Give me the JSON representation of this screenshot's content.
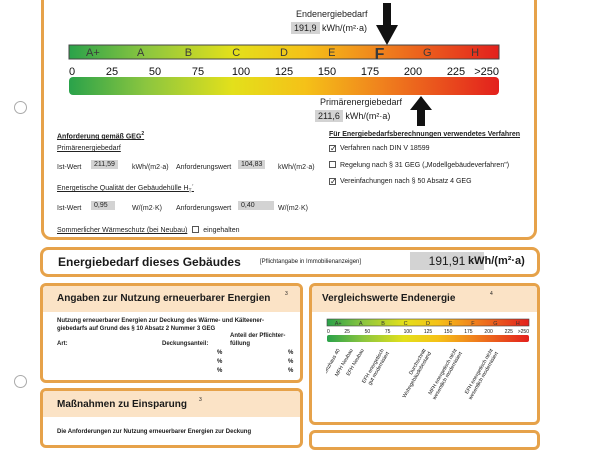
{
  "final_demand": {
    "label": "Endenergiebedarf",
    "value": "191,9",
    "unit": "kWh/(m²·a)"
  },
  "primary_demand": {
    "label": "Primärenergiebedarf",
    "value": "211,6",
    "unit": "kWh/(m²·a)"
  },
  "scale": {
    "classes": [
      "A+",
      "A",
      "B",
      "C",
      "D",
      "E",
      "F",
      "G",
      "H"
    ],
    "ticks": [
      "0",
      "25",
      "50",
      "75",
      "100",
      "125",
      "150",
      "175",
      "200",
      "225",
      ">250"
    ]
  },
  "requirements": {
    "title": "Anforderung gemäß GEG",
    "title_sup": "2",
    "primary_label": "Primärenergiebedarf",
    "actual_label": "Ist-Wert",
    "actual_value": "211,59",
    "unit1": "kWh/(m2·a)",
    "req_label": "Anforderungswert",
    "req_value": "104,83",
    "unit2": "kWh/(m2·a)",
    "envelope_label": "Energetische Qualität der Gebäudehülle H",
    "envelope_sub": "T",
    "envelope_suffix": "´",
    "env_actual_label": "Ist-Wert",
    "env_actual_value": "0,95",
    "env_unit1": "W/(m2·K)",
    "env_req_label": "Anforderungswert",
    "env_req_value": "0,40",
    "env_unit2": "W/(m2·K)",
    "summer_label": "Sommerlicher Wärmeschutz (bei Neubau)",
    "summer_option": "eingehalten"
  },
  "methods": {
    "title": "Für Energiebedarfsberechnungen verwendetes Verfahren",
    "items": [
      {
        "label": "Verfahren nach DIN V 18599",
        "checked": true
      },
      {
        "label": "Regelung nach § 31 GEG („Modellgebäudeverfahren\")",
        "checked": false
      },
      {
        "label": "Vereinfachungen nach § 50 Absatz 4 GEG",
        "checked": true
      }
    ]
  },
  "building_demand": {
    "title": "Energiebedarf dieses Gebäudes",
    "note": "[Pflichtangabe in Immobilienanzeigen]",
    "value": "191,91",
    "unit": "kWh/(m²·a)"
  },
  "renewables": {
    "title": "Angaben zur Nutzung erneuerbarer Energien",
    "title_sup": "3",
    "intro": "Nutzung erneuerbarer Energien zur Deckung des Wärme- und Kälteener-giebedarfs auf Grund des § 10 Absatz 2 Nummer 3 GEG",
    "col_art": "Art:",
    "col_share": "Deckungsanteil:",
    "col_req": "Anteil der Pflichter-füllung",
    "pct": "%"
  },
  "measures": {
    "title": "Maßnahmen zu Einsparung",
    "title_sup": "3",
    "text": "Die Anforderungen zur Nutzung erneuerbarer Energien zur Deckung"
  },
  "comparison": {
    "title": "Vergleichswerte Endenergie",
    "title_sup": "4",
    "classes": [
      "A+",
      "A",
      "B",
      "C",
      "D",
      "E",
      "F",
      "G",
      "H"
    ],
    "ticks": [
      "0",
      "25",
      "50",
      "75",
      "100",
      "125",
      "150",
      "175",
      "200",
      "225",
      ">250"
    ],
    "labels": [
      "Effizienzhaus 40",
      "MFH Neubau",
      "EFH Neubau",
      "EFH energetisch gut modernisiert",
      "Durchschnitt Wohngebäudebestand",
      "MFH energetisch nicht wesentlich modernisiert",
      "EFH energetisch nicht wesentlich modernisiert"
    ]
  }
}
